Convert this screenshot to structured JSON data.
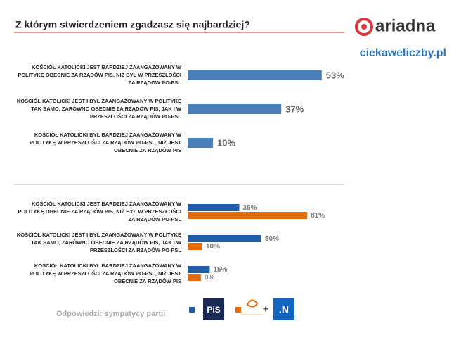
{
  "header": {
    "title": "Z którym stwierdzeniem zgadzasz się najbardziej?",
    "brand": "ariadna",
    "site": "ciekaweliczby.pl"
  },
  "chart_data": [
    {
      "type": "barh",
      "categories": [
        "KOŚCIÓŁ KATOLICKI JEST BARDZIEJ ZAANGAŻOWANY W POLITYKĘ OBECNIE ZA RZĄDÓW PIS, NIŻ BYŁ W PRZESZŁOŚCI ZA RZĄDÓW PO-PSL",
        "KOŚCIÓŁ KATOLICKI JEST I BYŁ ZAANGAŻOWANY W POLITYKĘ TAK SAMO, ZARÓWNO OBECNIE ZA RZĄDÓW PIS, JAK I W PRZESZŁOŚCI ZA RZĄDÓW PO-PSL",
        "KOŚCIÓŁ KATOLICKI BYŁ BARDZIEJ ZAANGAŻOWANY W POLITYKĘ W PRZESZŁOŚCI ZA RZĄDÓW PO-PSL, NIŻ JEST OBECNIE ZA RZĄDÓW PIS"
      ],
      "values": [
        53,
        37,
        10
      ],
      "value_labels": [
        "53%",
        "37%",
        "10%"
      ],
      "color": "#4a7ebb",
      "xlim": [
        0,
        100
      ]
    },
    {
      "type": "barh_grouped",
      "categories": [
        "KOŚCIÓŁ KATOLICKI JEST BARDZIEJ ZAANGAŻOWANY W POLITYKĘ OBECNIE ZA RZĄDÓW PIS, NIŻ BYŁ W PRZESZŁOŚCI ZA RZĄDÓW PO-PSL",
        "KOŚCIÓŁ KATOLICKI JEST I BYŁ ZAANGAŻOWANY W POLITYKĘ TAK SAMO, ZARÓWNO OBECNIE ZA RZĄDÓW PIS, JAK I W PRZESZŁOŚCI ZA RZĄDÓW PO-PSL",
        "KOŚCIÓŁ KATOLICKI BYŁ BARDZIEJ ZAANGAŻOWANY W POLITYKĘ W PRZESZŁOŚCI ZA RZĄDÓW PO-PSL, NIŻ JEST OBECNIE ZA RZĄDÓW PIS"
      ],
      "series": [
        {
          "name": "PiS",
          "color": "#1f5fa8",
          "values": [
            35,
            50,
            15
          ],
          "value_labels": [
            "35%",
            "50%",
            "15%"
          ]
        },
        {
          "name": "Platforma Obywatelska",
          "color": "#e36c0a",
          "values": [
            81,
            10,
            9
          ],
          "value_labels": [
            "81%",
            "10%",
            "9%"
          ]
        }
      ],
      "legend_extra": ".N",
      "xlim": [
        0,
        100
      ],
      "note": "Odpowiedzi: sympatycy partii"
    }
  ]
}
